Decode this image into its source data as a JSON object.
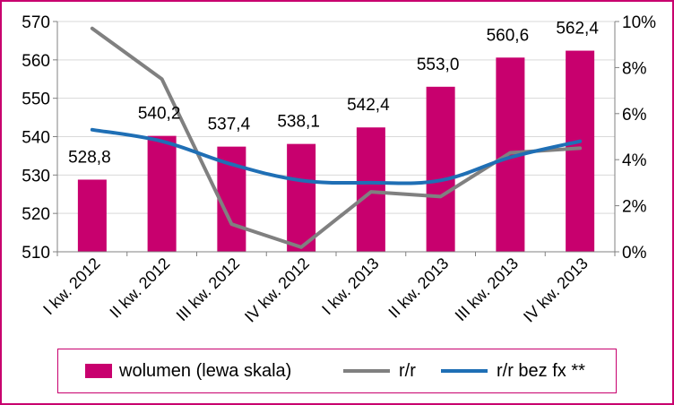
{
  "chart_data": {
    "type": "bar",
    "categories": [
      "I kw. 2012",
      "II kw. 2012",
      "III kw. 2012",
      "IV kw. 2012",
      "I kw. 2013",
      "II kw. 2013",
      "III kw. 2013",
      "IV kw. 2013"
    ],
    "left_axis": {
      "min": 510,
      "max": 570,
      "step": 10,
      "ticks": [
        "510",
        "520",
        "530",
        "540",
        "550",
        "560",
        "570"
      ]
    },
    "right_axis": {
      "min": 0,
      "max": 10,
      "step": 2,
      "ticks": [
        "0%",
        "2%",
        "4%",
        "6%",
        "8%",
        "10%"
      ]
    },
    "grid": true,
    "legend_position": "bottom",
    "series": [
      {
        "name": "wolumen (lewa skala)",
        "type": "bar",
        "axis": "left",
        "color": "#c8006e",
        "values": [
          528.8,
          540.2,
          537.4,
          538.1,
          542.4,
          553.0,
          560.6,
          562.4
        ],
        "labels": [
          "528,8",
          "540,2",
          "537,4",
          "538,1",
          "542,4",
          "553,0",
          "560,6",
          "562,4"
        ]
      },
      {
        "name": "r/r",
        "type": "line",
        "axis": "right",
        "color": "#808080",
        "values": [
          9.7,
          7.5,
          1.2,
          0.2,
          2.6,
          2.4,
          4.3,
          4.5
        ]
      },
      {
        "name": "r/r bez fx **",
        "type": "line",
        "axis": "right",
        "color": "#1f6fb5",
        "values": [
          5.3,
          4.8,
          3.8,
          3.1,
          3.0,
          3.1,
          4.1,
          4.8
        ]
      }
    ]
  }
}
